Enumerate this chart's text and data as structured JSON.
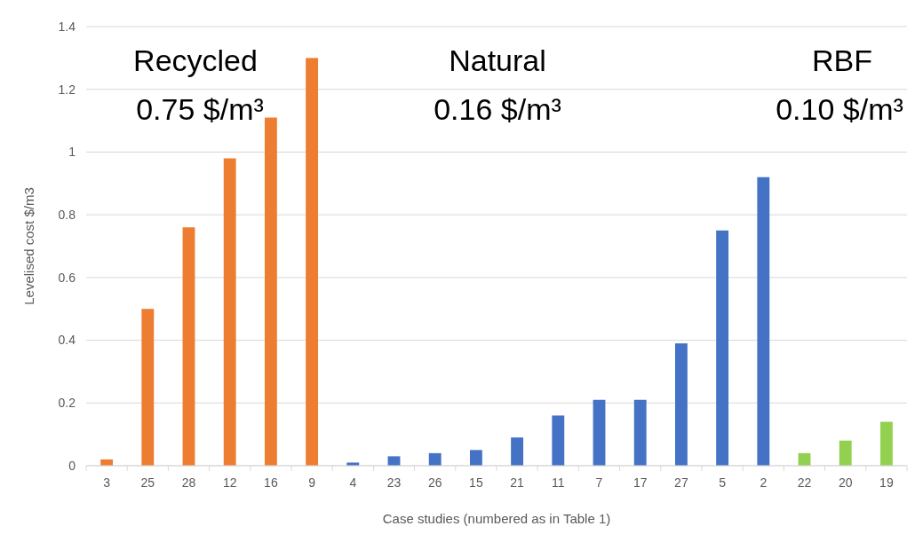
{
  "chart_data": {
    "type": "bar",
    "xlabel": "Case studies (numbered as in Table 1)",
    "ylabel": "Levelised cost $/m3",
    "categories": [
      "3",
      "25",
      "28",
      "12",
      "16",
      "9",
      "4",
      "23",
      "26",
      "15",
      "21",
      "11",
      "7",
      "17",
      "27",
      "5",
      "2",
      "22",
      "20",
      "19"
    ],
    "values": [
      0.02,
      0.5,
      0.76,
      0.98,
      1.11,
      1.3,
      0.01,
      0.03,
      0.04,
      0.05,
      0.09,
      0.16,
      0.21,
      0.21,
      0.39,
      0.75,
      0.92,
      0.04,
      0.08,
      0.14
    ],
    "colors": [
      "#ed7d31",
      "#ed7d31",
      "#ed7d31",
      "#ed7d31",
      "#ed7d31",
      "#ed7d31",
      "#4472c4",
      "#4472c4",
      "#4472c4",
      "#4472c4",
      "#4472c4",
      "#4472c4",
      "#4472c4",
      "#4472c4",
      "#4472c4",
      "#4472c4",
      "#4472c4",
      "#92d050",
      "#92d050",
      "#92d050"
    ],
    "ylim": [
      0,
      1.4
    ],
    "yticks": [
      0,
      0.2,
      0.4,
      0.6,
      0.8,
      1,
      1.2,
      1.4
    ],
    "grid": "y",
    "annotations": [
      "Recycled",
      "0.75 $/m³",
      "Natural",
      "0.16 $/m³",
      "RBF",
      "0.10 $/m³"
    ]
  }
}
